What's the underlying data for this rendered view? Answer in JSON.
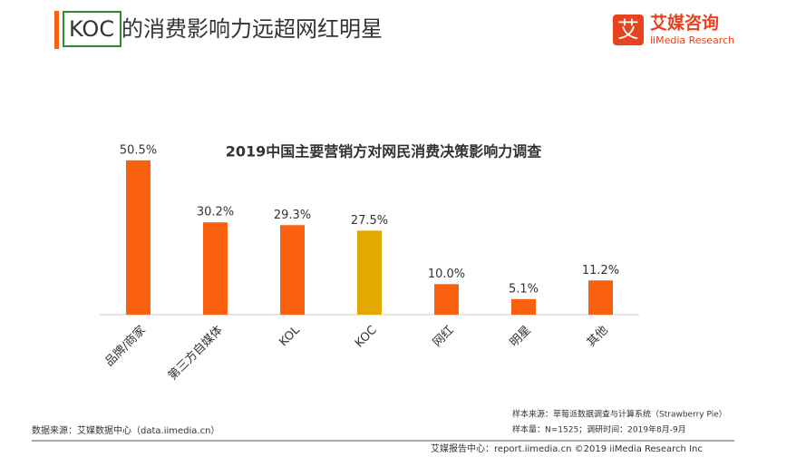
{
  "header": {
    "title_highlight": "KOC",
    "title_rest": "的消费影响力远超网红明星",
    "logo_cn": "艾媒咨询",
    "logo_en": "iiMedia Research",
    "logo_mark": "艾"
  },
  "chart_data": {
    "type": "bar",
    "title": "2019中国主要营销方对网民消费决策影响力调查",
    "categories": [
      "品牌/商家",
      "第三方自媒体",
      "KOL",
      "KOC",
      "网红",
      "明星",
      "其他"
    ],
    "values": [
      50.5,
      30.2,
      29.3,
      27.5,
      10.0,
      5.1,
      11.2
    ],
    "value_labels": [
      "50.5%",
      "30.2%",
      "29.3%",
      "27.5%",
      "10.0%",
      "5.1%",
      "11.2%"
    ],
    "colors": [
      "#f96010",
      "#f96010",
      "#f96010",
      "#e3a900",
      "#f96010",
      "#f96010",
      "#f96010"
    ]
  },
  "footer": {
    "sample_source": "样本来源：草莓派数据调查与计算系统（Strawberry Pie）",
    "sample_size": "样本量：N=1525；调研时间：2019年8月-9月",
    "data_source": "数据来源：艾媒数据中心（data.iimedia.cn）",
    "report_center": "艾媒报告中心：report.iimedia.cn ©2019 iiMedia Research Inc"
  }
}
